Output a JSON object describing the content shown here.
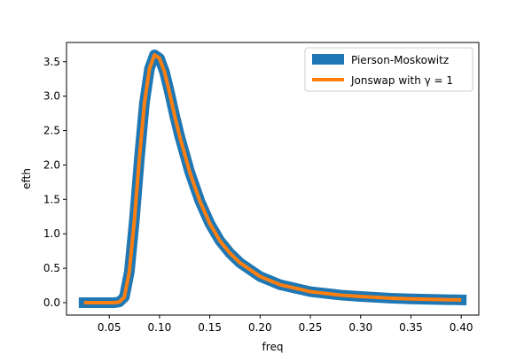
{
  "chart_data": {
    "type": "line",
    "xlabel": "freq",
    "ylabel": "efth",
    "xlim": [
      0.0075,
      0.4175
    ],
    "ylim": [
      -0.18,
      3.78
    ],
    "x_ticks": [
      0.05,
      0.1,
      0.15,
      0.2,
      0.25,
      0.3,
      0.35,
      0.4
    ],
    "x_tick_labels": [
      "0.05",
      "0.10",
      "0.15",
      "0.20",
      "0.25",
      "0.30",
      "0.35",
      "0.40"
    ],
    "y_ticks": [
      0.0,
      0.5,
      1.0,
      1.5,
      2.0,
      2.5,
      3.0,
      3.5
    ],
    "y_tick_labels": [
      "0.0",
      "0.5",
      "1.0",
      "1.5",
      "2.0",
      "2.5",
      "3.0",
      "3.5"
    ],
    "grid": false,
    "legend_placement": "top-right",
    "x": [
      0.025,
      0.05,
      0.055,
      0.06,
      0.065,
      0.07,
      0.075,
      0.08,
      0.085,
      0.09,
      0.095,
      0.1,
      0.105,
      0.11,
      0.115,
      0.12,
      0.13,
      0.14,
      0.15,
      0.16,
      0.17,
      0.18,
      0.2,
      0.22,
      0.25,
      0.28,
      0.3,
      0.33,
      0.35,
      0.38,
      0.4
    ],
    "series": [
      {
        "name": "Pierson-Moskowitz",
        "color": "#1f77b4",
        "values": [
          0.0,
          0.0,
          0.0,
          0.01,
          0.08,
          0.45,
          1.2,
          2.1,
          2.9,
          3.4,
          3.6,
          3.55,
          3.35,
          3.05,
          2.72,
          2.42,
          1.9,
          1.48,
          1.15,
          0.9,
          0.72,
          0.58,
          0.38,
          0.26,
          0.16,
          0.11,
          0.09,
          0.065,
          0.055,
          0.045,
          0.04
        ]
      },
      {
        "name": "Jonswap with γ = 1",
        "color": "#ff7f0e",
        "values": [
          0.0,
          0.0,
          0.0,
          0.01,
          0.08,
          0.45,
          1.2,
          2.1,
          2.9,
          3.4,
          3.6,
          3.55,
          3.35,
          3.05,
          2.72,
          2.42,
          1.9,
          1.48,
          1.15,
          0.9,
          0.72,
          0.58,
          0.38,
          0.26,
          0.16,
          0.11,
          0.09,
          0.065,
          0.055,
          0.045,
          0.04
        ]
      }
    ]
  }
}
